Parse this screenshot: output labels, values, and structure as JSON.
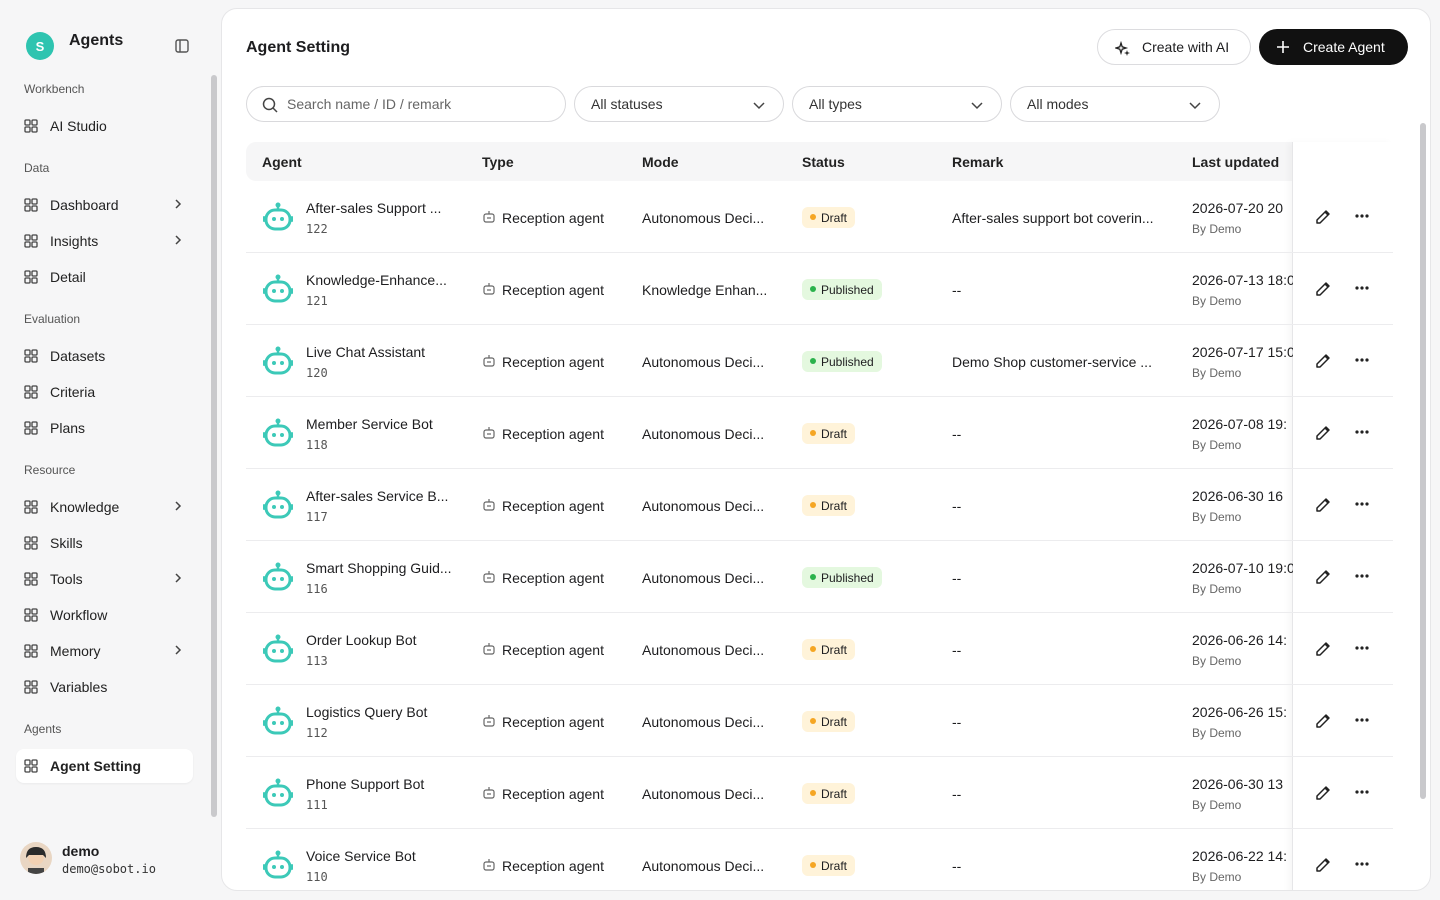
{
  "sidebar": {
    "logo": "S",
    "title": "Agents",
    "groups": [
      {
        "label": "Workbench",
        "items": [
          {
            "label": "AI Studio",
            "expandable": false
          }
        ]
      },
      {
        "label": "Data",
        "items": [
          {
            "label": "Dashboard",
            "expandable": true
          },
          {
            "label": "Insights",
            "expandable": true
          },
          {
            "label": "Detail",
            "expandable": false
          }
        ]
      },
      {
        "label": "Evaluation",
        "items": [
          {
            "label": "Datasets",
            "expandable": false
          },
          {
            "label": "Criteria",
            "expandable": false
          },
          {
            "label": "Plans",
            "expandable": false
          }
        ]
      },
      {
        "label": "Resource",
        "items": [
          {
            "label": "Knowledge",
            "expandable": true
          },
          {
            "label": "Skills",
            "expandable": false
          },
          {
            "label": "Tools",
            "expandable": true
          },
          {
            "label": "Workflow",
            "expandable": false
          },
          {
            "label": "Memory",
            "expandable": true
          },
          {
            "label": "Variables",
            "expandable": false
          }
        ]
      },
      {
        "label": "Agents",
        "items": [
          {
            "label": "Agent Setting",
            "expandable": false,
            "active": true
          }
        ]
      }
    ],
    "user": {
      "name": "demo",
      "email": "demo@sobot.io"
    }
  },
  "header": {
    "title": "Agent Setting",
    "buttons": [
      "Create with AI",
      "Create Agent"
    ]
  },
  "filters": {
    "search_placeholder": "Search name / ID / remark",
    "selects": [
      "All statuses",
      "All types",
      "All modes"
    ]
  },
  "table": {
    "columns": [
      "Agent",
      "Type",
      "Mode",
      "Status",
      "Remark",
      "Last updated"
    ],
    "rows": [
      {
        "agent": "After-sales Support ...",
        "id": 122,
        "type": "Reception agent",
        "mode": "Autonomous Deci...",
        "status": "Draft",
        "remark": "After-sales support bot coverin...",
        "updated": "2026-07-20 20",
        "by": "By Demo"
      },
      {
        "agent": "Knowledge-Enhance...",
        "id": 121,
        "type": "Reception agent",
        "mode": "Knowledge Enhan...",
        "status": "Published",
        "remark": "--",
        "updated": "2026-07-13 18:0",
        "by": "By Demo"
      },
      {
        "agent": "Live Chat Assistant",
        "id": 120,
        "type": "Reception agent",
        "mode": "Autonomous Deci...",
        "status": "Published",
        "remark": "Demo Shop customer-service ...",
        "updated": "2026-07-17 15:0",
        "by": "By Demo"
      },
      {
        "agent": "Member Service Bot",
        "id": 118,
        "type": "Reception agent",
        "mode": "Autonomous Deci...",
        "status": "Draft",
        "remark": "--",
        "updated": "2026-07-08 19:",
        "by": "By Demo"
      },
      {
        "agent": "After-sales Service B...",
        "id": 117,
        "type": "Reception agent",
        "mode": "Autonomous Deci...",
        "status": "Draft",
        "remark": "--",
        "updated": "2026-06-30 16",
        "by": "By Demo"
      },
      {
        "agent": "Smart Shopping Guid...",
        "id": 116,
        "type": "Reception agent",
        "mode": "Autonomous Deci...",
        "status": "Published",
        "remark": "--",
        "updated": "2026-07-10 19:0",
        "by": "By Demo"
      },
      {
        "agent": "Order Lookup Bot",
        "id": 113,
        "type": "Reception agent",
        "mode": "Autonomous Deci...",
        "status": "Draft",
        "remark": "--",
        "updated": "2026-06-26 14:",
        "by": "By Demo"
      },
      {
        "agent": "Logistics Query Bot",
        "id": 112,
        "type": "Reception agent",
        "mode": "Autonomous Deci...",
        "status": "Draft",
        "remark": "--",
        "updated": "2026-06-26 15:",
        "by": "By Demo"
      },
      {
        "agent": "Phone Support Bot",
        "id": 111,
        "type": "Reception agent",
        "mode": "Autonomous Deci...",
        "status": "Draft",
        "remark": "--",
        "updated": "2026-06-30 13",
        "by": "By Demo"
      },
      {
        "agent": "Voice Service Bot",
        "id": 110,
        "type": "Reception agent",
        "mode": "Autonomous Deci...",
        "status": "Draft",
        "remark": "--",
        "updated": "2026-06-22 14:",
        "by": "By Demo"
      }
    ]
  }
}
